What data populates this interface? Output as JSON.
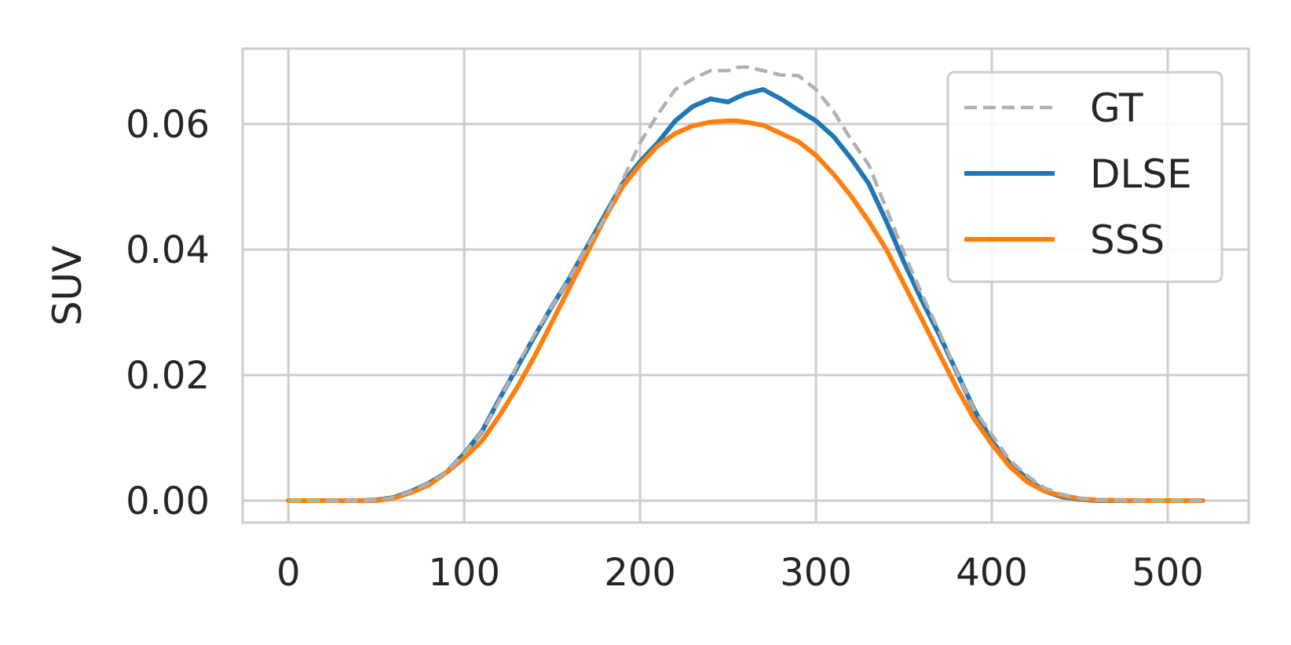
{
  "chart_data": {
    "type": "line",
    "title": "",
    "xlabel": "",
    "ylabel": "SUV",
    "xlim": [
      -26,
      546
    ],
    "ylim": [
      -0.0035,
      0.072
    ],
    "xticks": [
      0,
      100,
      200,
      300,
      400,
      500
    ],
    "yticks": [
      0.0,
      0.02,
      0.04,
      0.06
    ],
    "xtick_labels": [
      "0",
      "100",
      "200",
      "300",
      "400",
      "500"
    ],
    "ytick_labels": [
      "0.00",
      "0.02",
      "0.04",
      "0.06"
    ],
    "grid": true,
    "legend_position": "top-right",
    "series": [
      {
        "name": "GT",
        "color": "#b0b0b0",
        "dash": "dashed",
        "x": [
          0,
          20,
          40,
          50,
          60,
          70,
          80,
          90,
          100,
          110,
          120,
          130,
          140,
          150,
          160,
          170,
          180,
          190,
          200,
          210,
          220,
          230,
          240,
          250,
          255,
          260,
          270,
          280,
          290,
          300,
          310,
          320,
          330,
          340,
          350,
          360,
          370,
          380,
          390,
          400,
          410,
          420,
          430,
          440,
          450,
          460,
          480,
          500,
          520
        ],
        "y": [
          0,
          0,
          0,
          0.0001,
          0.0005,
          0.0015,
          0.0028,
          0.0045,
          0.0075,
          0.011,
          0.016,
          0.0215,
          0.0265,
          0.031,
          0.0355,
          0.0405,
          0.045,
          0.051,
          0.057,
          0.0615,
          0.0655,
          0.0672,
          0.0685,
          0.0685,
          0.069,
          0.0691,
          0.0685,
          0.0678,
          0.0677,
          0.0655,
          0.062,
          0.0575,
          0.0535,
          0.0465,
          0.0395,
          0.033,
          0.027,
          0.0205,
          0.0145,
          0.0105,
          0.0065,
          0.004,
          0.002,
          0.001,
          0.0004,
          0.0001,
          0,
          0,
          0
        ]
      },
      {
        "name": "DLSE",
        "color": "#1f77b4",
        "dash": "solid",
        "x": [
          0,
          20,
          40,
          50,
          60,
          70,
          80,
          90,
          100,
          110,
          120,
          130,
          140,
          150,
          160,
          170,
          180,
          190,
          200,
          210,
          220,
          230,
          240,
          250,
          255,
          260,
          270,
          280,
          290,
          300,
          310,
          320,
          330,
          340,
          350,
          360,
          370,
          380,
          390,
          400,
          410,
          420,
          430,
          440,
          450,
          460,
          480,
          500,
          520
        ],
        "y": [
          0,
          0,
          0,
          0.0001,
          0.0005,
          0.0015,
          0.0028,
          0.0045,
          0.0075,
          0.011,
          0.0162,
          0.0212,
          0.0262,
          0.031,
          0.0355,
          0.0405,
          0.0455,
          0.0505,
          0.054,
          0.057,
          0.0605,
          0.0628,
          0.064,
          0.0635,
          0.0642,
          0.0648,
          0.0655,
          0.064,
          0.0622,
          0.0605,
          0.058,
          0.0545,
          0.0505,
          0.0445,
          0.038,
          0.032,
          0.0265,
          0.0205,
          0.0145,
          0.0095,
          0.006,
          0.0035,
          0.0015,
          0.0006,
          0.0002,
          0,
          0,
          0,
          0
        ]
      },
      {
        "name": "SSS",
        "color": "#ff7f0e",
        "dash": "solid",
        "x": [
          0,
          20,
          40,
          50,
          60,
          70,
          80,
          90,
          100,
          110,
          120,
          130,
          140,
          150,
          160,
          170,
          180,
          190,
          200,
          210,
          220,
          230,
          240,
          250,
          255,
          260,
          270,
          280,
          290,
          300,
          310,
          320,
          330,
          340,
          350,
          360,
          370,
          380,
          390,
          400,
          410,
          420,
          430,
          440,
          450,
          460,
          480,
          500,
          520
        ],
        "y": [
          0,
          0,
          0,
          0,
          0.0004,
          0.0013,
          0.0025,
          0.0045,
          0.0068,
          0.0095,
          0.0135,
          0.018,
          0.023,
          0.0285,
          0.034,
          0.0395,
          0.045,
          0.05,
          0.0535,
          0.0565,
          0.0585,
          0.0597,
          0.0603,
          0.0605,
          0.0605,
          0.0603,
          0.0598,
          0.0585,
          0.0572,
          0.055,
          0.052,
          0.0485,
          0.0445,
          0.04,
          0.0345,
          0.029,
          0.0235,
          0.018,
          0.013,
          0.009,
          0.0055,
          0.003,
          0.0015,
          0.0008,
          0.0003,
          0.0001,
          0,
          0,
          0
        ]
      }
    ]
  }
}
